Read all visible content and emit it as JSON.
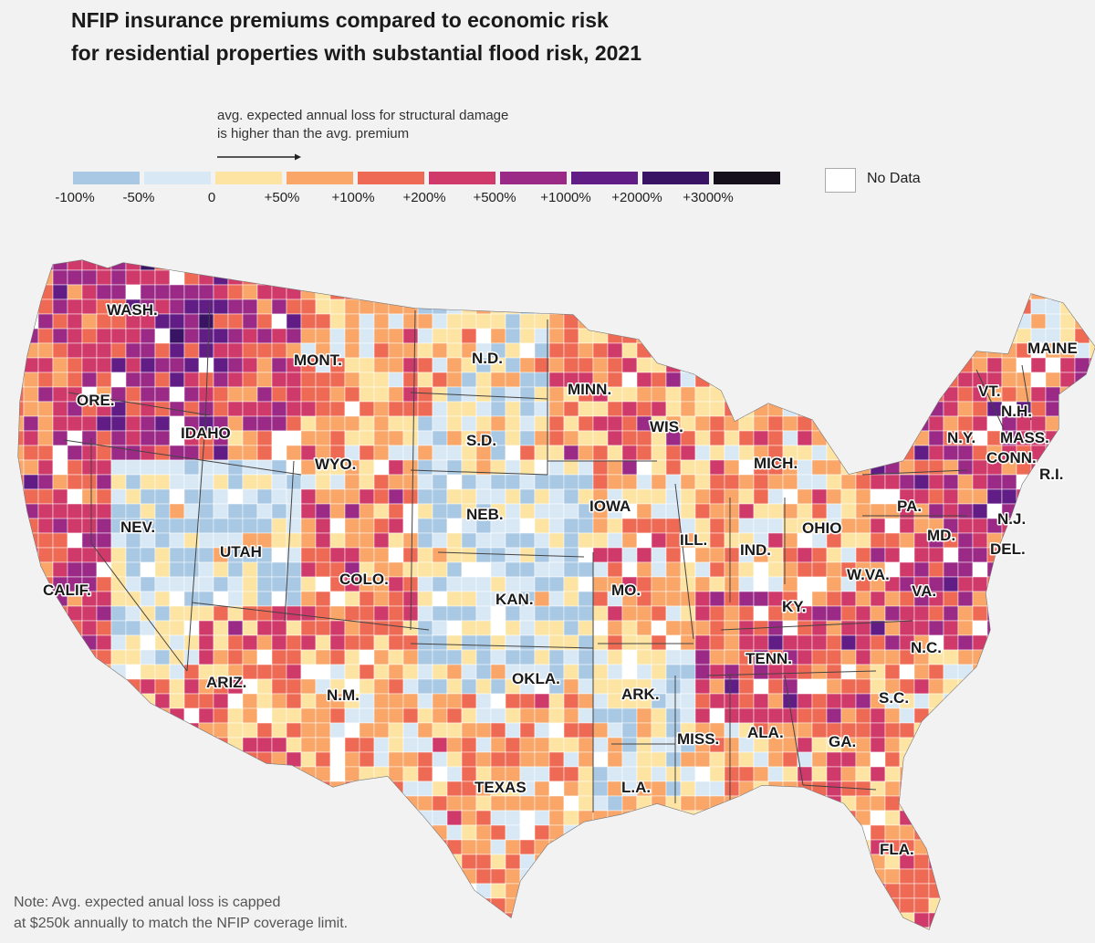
{
  "title": {
    "line1": "NFIP insurance premiums compared to economic risk",
    "line2": "for residential properties with substantial flood risk, 2021"
  },
  "legend": {
    "note_line1": "avg. expected annual loss for structural damage",
    "note_line2": "is higher than the avg. premium",
    "arrow_icon": "arrow-right-icon",
    "ticks": [
      "-100%",
      "-50%",
      "0",
      "+50%",
      "+100%",
      "+200%",
      "+500%",
      "+1000%",
      "+2000%",
      "+3000%"
    ],
    "colors": [
      "#a8c8e4",
      "#d9e8f5",
      "#fde4a3",
      "#f9a668",
      "#ef6a55",
      "#cf3a6a",
      "#9b2a86",
      "#621c86",
      "#3a1464",
      "#15101c"
    ],
    "no_data_label": "No Data",
    "no_data_color": "#ffffff"
  },
  "map": {
    "state_labels": [
      "WASH.",
      "ORE.",
      "CALIF.",
      "NEV.",
      "IDAHO",
      "MONT.",
      "WYO.",
      "UTAH",
      "COLO.",
      "ARIZ.",
      "N.M.",
      "N.D.",
      "S.D.",
      "NEB.",
      "KAN.",
      "OKLA.",
      "TEXAS",
      "MINN.",
      "IOWA",
      "MO.",
      "ARK.",
      "L.A.",
      "WIS.",
      "ILL.",
      "MICH.",
      "IND.",
      "OHIO",
      "KY.",
      "TENN.",
      "MISS.",
      "ALA.",
      "GA.",
      "FLA.",
      "S.C.",
      "N.C.",
      "VA.",
      "W.VA.",
      "PA.",
      "N.Y.",
      "VT.",
      "N.H.",
      "MAINE",
      "MASS.",
      "CONN.",
      "R.I.",
      "N.J.",
      "DEL.",
      "MD."
    ]
  },
  "note": {
    "line1": "Note: Avg. expected anual loss is capped",
    "line2": "at $250k annually to match the NFIP coverage limit."
  }
}
